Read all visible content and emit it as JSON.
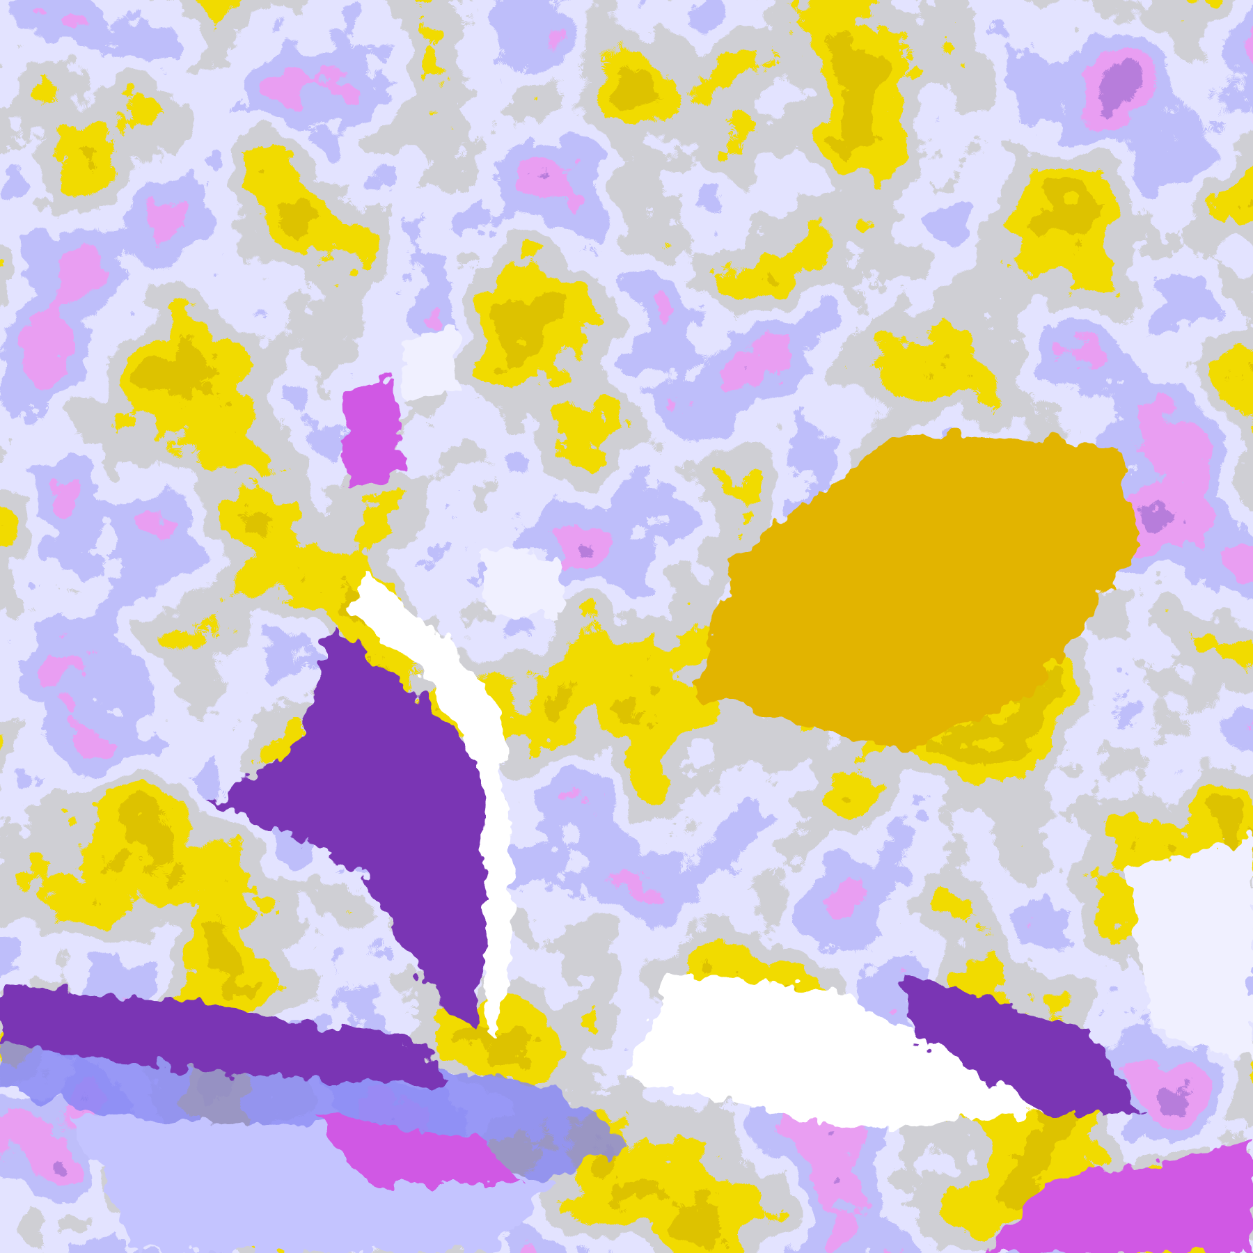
{
  "map": {
    "kind": "satellite cloud-class composite",
    "palette": {
      "clear": "#ffffff",
      "gold": "#e2b400",
      "dark_gold": "#b88a00",
      "gray": "#a0a0a8",
      "lavender": "#c4c4ff",
      "blue_violet": "#8484f4",
      "magenta": "#d058e4",
      "purple": "#7a34b4",
      "pale": "#f0f0ff"
    },
    "class_order": [
      "clear",
      "gold",
      "dark_gold",
      "gold",
      "gray",
      "lavender",
      "blue_violet",
      "magenta",
      "purple",
      "pale"
    ]
  }
}
